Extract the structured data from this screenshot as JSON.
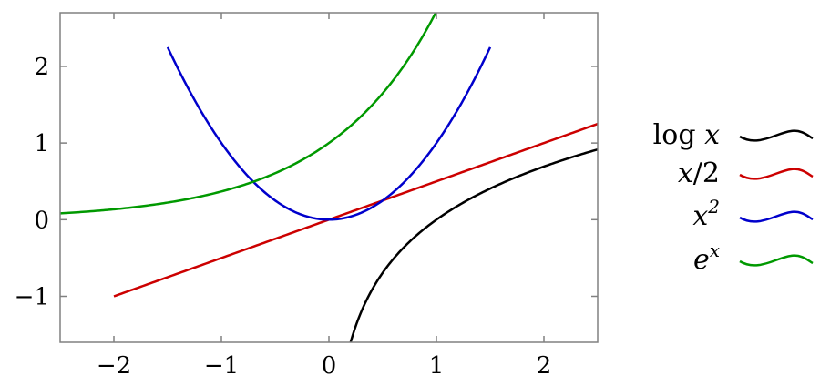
{
  "chart_data": {
    "type": "line",
    "title": "",
    "xlabel": "",
    "ylabel": "",
    "xlim": [
      -2.5,
      2.5
    ],
    "ylim": [
      -1.6,
      2.7
    ],
    "grid": false,
    "legend_position": "right",
    "x_ticks": [
      {
        "value": -2,
        "label": "−2"
      },
      {
        "value": -1,
        "label": "−1"
      },
      {
        "value": 0,
        "label": "0"
      },
      {
        "value": 1,
        "label": "1"
      },
      {
        "value": 2,
        "label": "2"
      }
    ],
    "y_ticks": [
      {
        "value": -1,
        "label": "−1"
      },
      {
        "value": 0,
        "label": "0"
      },
      {
        "value": 1,
        "label": "1"
      },
      {
        "value": 2,
        "label": "2"
      }
    ],
    "series": [
      {
        "name": "log x",
        "color": "#000000",
        "x": [
          0.2,
          0.25,
          0.3,
          0.4,
          0.5,
          0.6,
          0.7,
          0.8,
          0.9,
          1.0,
          1.2,
          1.4,
          1.6,
          1.8,
          2.0,
          2.2,
          2.5
        ],
        "y": [
          -1.609,
          -1.386,
          -1.204,
          -0.916,
          -0.693,
          -0.511,
          -0.357,
          -0.223,
          -0.105,
          0.0,
          0.182,
          0.336,
          0.47,
          0.588,
          0.693,
          0.788,
          0.916
        ]
      },
      {
        "name": "x/2",
        "color": "#cc0000",
        "x": [
          -2,
          2.5
        ],
        "y": [
          -1,
          1.25
        ]
      },
      {
        "name": "x^2",
        "color": "#0000cc",
        "x": [
          -1.5,
          -1.25,
          -1.0,
          -0.75,
          -0.5,
          -0.25,
          0.0,
          0.25,
          0.5,
          0.75,
          1.0,
          1.25,
          1.5
        ],
        "y": [
          2.25,
          1.5625,
          1.0,
          0.5625,
          0.25,
          0.0625,
          0.0,
          0.0625,
          0.25,
          0.5625,
          1.0,
          1.5625,
          2.25
        ]
      },
      {
        "name": "e^x",
        "color": "#009900",
        "x": [
          -2.5,
          -2.0,
          -1.5,
          -1.0,
          -0.75,
          -0.5,
          -0.25,
          0.0,
          0.25,
          0.5,
          0.75,
          1.0
        ],
        "y": [
          0.082,
          0.135,
          0.223,
          0.368,
          0.472,
          0.607,
          0.779,
          1.0,
          1.284,
          1.649,
          2.117,
          2.718
        ]
      }
    ],
    "legend": [
      {
        "base": "log",
        "var": "x",
        "sup": "",
        "suffix": ""
      },
      {
        "base": "",
        "var": "x",
        "sup": "",
        "suffix": "/2"
      },
      {
        "base": "",
        "var": "x",
        "sup": "2",
        "suffix": ""
      },
      {
        "base": "",
        "var": "e",
        "sup": "x",
        "suffix": ""
      }
    ]
  }
}
